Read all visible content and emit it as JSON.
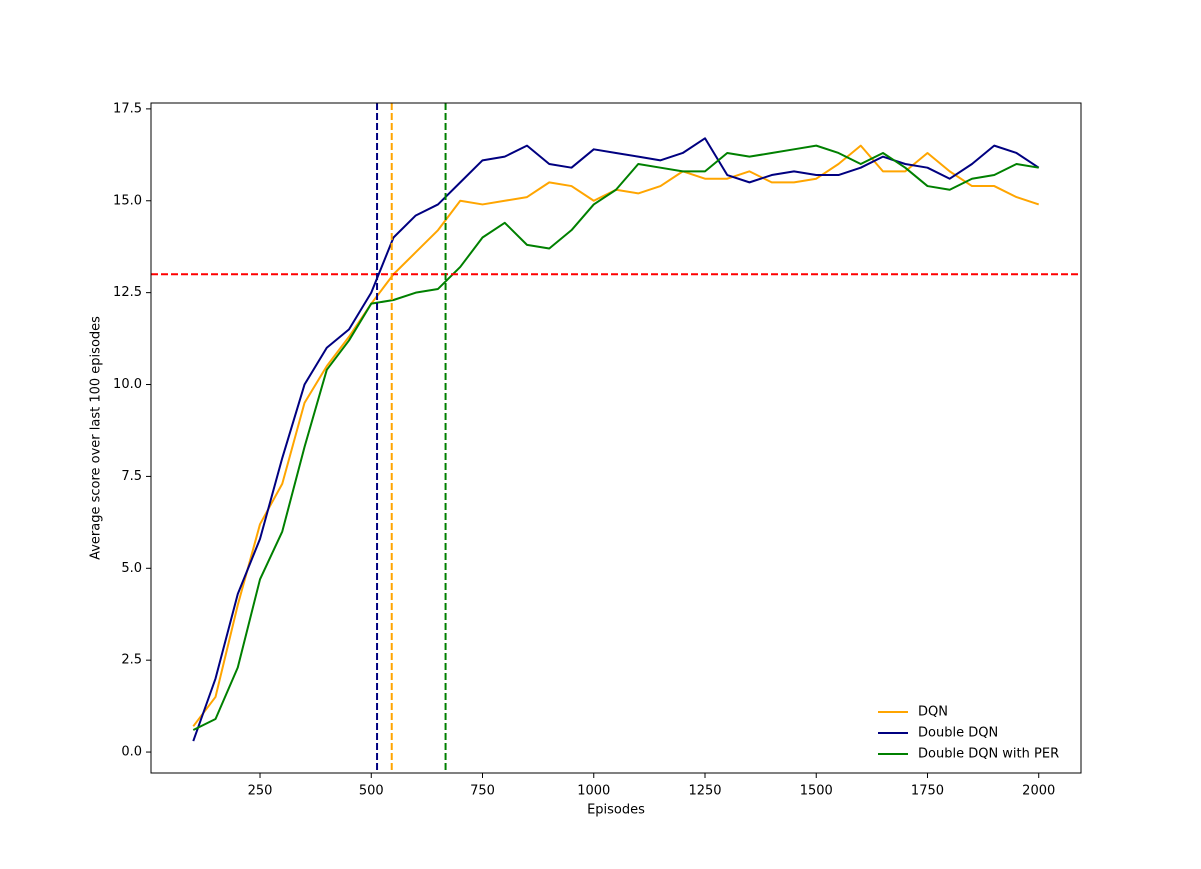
{
  "chart_data": {
    "type": "line",
    "xlabel": "Episodes",
    "ylabel": "Average score over last 100 episodes",
    "x": [
      100,
      150,
      200,
      250,
      300,
      350,
      400,
      450,
      500,
      550,
      600,
      650,
      700,
      750,
      800,
      850,
      900,
      950,
      1000,
      1050,
      1100,
      1150,
      1200,
      1250,
      1300,
      1350,
      1400,
      1450,
      1500,
      1550,
      1600,
      1650,
      1700,
      1750,
      1800,
      1850,
      1900,
      1950,
      2000
    ],
    "series": [
      {
        "name": "DQN",
        "color": "orange",
        "values": [
          0.7,
          1.5,
          4.0,
          6.2,
          7.3,
          9.5,
          10.5,
          11.3,
          12.2,
          13.0,
          13.6,
          14.2,
          15.0,
          14.9,
          15.0,
          15.1,
          15.5,
          15.4,
          15.0,
          15.3,
          15.2,
          15.4,
          15.8,
          15.6,
          15.6,
          15.8,
          15.5,
          15.5,
          15.6,
          16.0,
          16.5,
          15.8,
          15.8,
          16.3,
          15.8,
          15.4,
          15.4,
          15.1,
          14.9
        ]
      },
      {
        "name": "Double DQN",
        "color": "navy",
        "values": [
          0.3,
          2.0,
          4.3,
          5.8,
          8.0,
          10.0,
          11.0,
          11.5,
          12.5,
          14.0,
          14.6,
          14.9,
          15.5,
          16.1,
          16.2,
          16.5,
          16.0,
          15.9,
          16.4,
          16.3,
          16.2,
          16.1,
          16.3,
          16.7,
          15.7,
          15.5,
          15.7,
          15.8,
          15.7,
          15.7,
          15.9,
          16.2,
          16.0,
          15.9,
          15.6,
          16.0,
          16.5,
          16.3,
          15.9
        ]
      },
      {
        "name": "Double DQN with PER",
        "color": "green",
        "values": [
          0.6,
          0.9,
          2.3,
          4.7,
          6.0,
          8.3,
          10.4,
          11.2,
          12.2,
          12.3,
          12.5,
          12.6,
          13.2,
          14.0,
          14.4,
          13.8,
          13.7,
          14.2,
          14.9,
          15.3,
          16.0,
          15.9,
          15.8,
          15.8,
          16.3,
          16.2,
          16.3,
          16.4,
          16.5,
          16.3,
          16.0,
          16.3,
          15.9,
          15.4,
          15.3,
          15.6,
          15.7,
          16.0,
          15.9
        ]
      }
    ],
    "hlines": [
      {
        "value": 13,
        "color": "red"
      }
    ],
    "vlines": [
      {
        "value": 513,
        "color": "navy"
      },
      {
        "value": 546,
        "color": "orange"
      },
      {
        "value": 667,
        "color": "green"
      }
    ],
    "xlim": [
      5,
      2095
    ],
    "ylim": [
      -0.57,
      17.66
    ],
    "xticks": [
      250,
      500,
      750,
      1000,
      1250,
      1500,
      1750,
      2000
    ],
    "yticks": [
      {
        "value": 0,
        "label": "0.0"
      },
      {
        "value": 2.5,
        "label": "2.5"
      },
      {
        "value": 5,
        "label": "5.0"
      },
      {
        "value": 7.5,
        "label": "7.5"
      },
      {
        "value": 10,
        "label": "10.0"
      },
      {
        "value": 12.5,
        "label": "12.5"
      },
      {
        "value": 15,
        "label": "15.0"
      },
      {
        "value": 17.5,
        "label": "17.5"
      }
    ],
    "legend": "lower right"
  }
}
